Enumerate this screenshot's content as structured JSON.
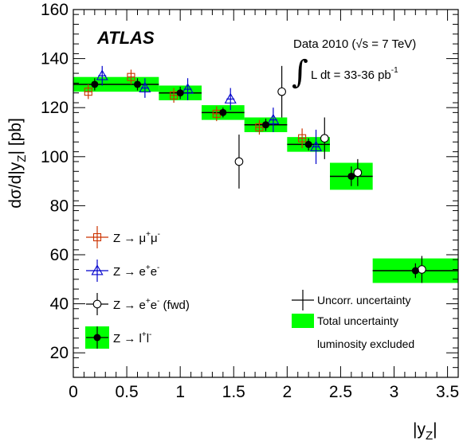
{
  "chart_data": {
    "type": "scatter",
    "title": "",
    "experiment": "ATLAS",
    "annotation": {
      "data_line": "Data 2010 (√s = 7 TeV)",
      "lumi_prefix": "∫",
      "lumi_text": "L dt = 33-36 pb",
      "lumi_sup": "-1"
    },
    "xlabel": "|y",
    "xlabel_sub": "Z",
    "xlabel_end": "|",
    "ylabel": "dσ/d|y",
    "ylabel_sub": "Z",
    "ylabel_end": "| [pb]",
    "xlim": [
      0,
      3.6
    ],
    "ylim": [
      10,
      160
    ],
    "x_ticks": [
      0,
      0.5,
      1,
      1.5,
      2,
      2.5,
      3,
      3.5
    ],
    "x_tick_labels": [
      "0",
      "0.5",
      "1",
      "1.5",
      "2",
      "2.5",
      "3",
      "3.5"
    ],
    "y_ticks": [
      20,
      40,
      60,
      80,
      100,
      120,
      140,
      160
    ],
    "y_tick_labels": [
      "20",
      "40",
      "60",
      "80",
      "100",
      "120",
      "140",
      "160"
    ],
    "series": [
      {
        "name": "Z → l⁺l⁻",
        "marker": "filled-circle",
        "color": "#000000",
        "points": [
          {
            "x": 0.2,
            "y": 129.5,
            "err": 2.5,
            "xlo": 0.0,
            "xhi": 0.8,
            "tot": 3.0
          },
          {
            "x": 0.6,
            "y": 129.5,
            "err": 2.5,
            "xlo": 0.0,
            "xhi": 0.8,
            "tot": 3.0
          },
          {
            "x": 1.0,
            "y": 126.0,
            "err": 2.5,
            "xlo": 0.8,
            "xhi": 1.2,
            "tot": 3.0
          },
          {
            "x": 1.4,
            "y": 118.0,
            "err": 2.0,
            "xlo": 1.2,
            "xhi": 1.6,
            "tot": 3.0
          },
          {
            "x": 1.8,
            "y": 113.0,
            "err": 2.5,
            "xlo": 1.6,
            "xhi": 2.0,
            "tot": 3.0
          },
          {
            "x": 2.2,
            "y": 105.0,
            "err": 2.5,
            "xlo": 2.0,
            "xhi": 2.4,
            "tot": 3.0
          },
          {
            "x": 2.6,
            "y": 92.0,
            "err": 4.0,
            "xlo": 2.4,
            "xhi": 2.8,
            "tot": 5.5
          },
          {
            "x": 3.2,
            "y": 53.5,
            "err": 3.0,
            "xlo": 2.8,
            "xhi": 3.6,
            "tot": 5.0
          }
        ]
      },
      {
        "name": "Z → μ⁺μ⁻",
        "marker": "open-square",
        "color": "#cc3300",
        "points": [
          {
            "x": 0.14,
            "y": 126.5,
            "err": 3.0
          },
          {
            "x": 0.54,
            "y": 132.5,
            "err": 3.0
          },
          {
            "x": 0.94,
            "y": 125.0,
            "err": 3.0
          },
          {
            "x": 1.34,
            "y": 117.5,
            "err": 3.0
          },
          {
            "x": 1.74,
            "y": 112.0,
            "err": 3.0
          },
          {
            "x": 2.14,
            "y": 107.5,
            "err": 4.0
          }
        ]
      },
      {
        "name": "Z → e⁺e⁻",
        "marker": "open-triangle",
        "color": "#0000cc",
        "points": [
          {
            "x": 0.27,
            "y": 133.0,
            "err": 4.0
          },
          {
            "x": 0.67,
            "y": 128.0,
            "err": 4.0
          },
          {
            "x": 1.07,
            "y": 127.5,
            "err": 4.5
          },
          {
            "x": 1.47,
            "y": 123.5,
            "err": 4.5
          },
          {
            "x": 1.87,
            "y": 115.0,
            "err": 5.0
          },
          {
            "x": 2.27,
            "y": 104.0,
            "err": 7.0
          }
        ]
      },
      {
        "name": "Z → e⁺e⁻ (fwd)",
        "marker": "open-circle",
        "color": "#000000",
        "points": [
          {
            "x": 1.55,
            "y": 98.0,
            "err": 11.0
          },
          {
            "x": 1.95,
            "y": 126.5,
            "err": 10.5
          },
          {
            "x": 2.35,
            "y": 107.5,
            "err": 8.5
          },
          {
            "x": 2.66,
            "y": 93.5,
            "err": 5.5
          },
          {
            "x": 3.26,
            "y": 54.0,
            "err": 5.5
          }
        ]
      }
    ],
    "legend_left": [
      {
        "label": "Z → μ",
        "sup1": "+",
        "mid": "μ",
        "sup2": "-",
        "marker": "open-square",
        "color": "#cc3300"
      },
      {
        "label": "Z → e",
        "sup1": "+",
        "mid": "e",
        "sup2": "-",
        "marker": "open-triangle",
        "color": "#0000cc"
      },
      {
        "label": "Z → e",
        "sup1": "+",
        "mid": "e",
        "sup2": "-",
        "suffix": " (fwd)",
        "marker": "open-circle",
        "color": "#000000"
      },
      {
        "label": "Z → l",
        "sup1": "+",
        "mid": "l",
        "sup2": "-",
        "marker": "filled-circle-box",
        "color": "#000000"
      }
    ],
    "legend_right": [
      {
        "label": "Uncorr. uncertainty"
      },
      {
        "label": "Total uncertainty"
      },
      {
        "label": "luminosity excluded"
      }
    ],
    "colors": {
      "band": "#00ff00",
      "box_color": "#00ff00"
    },
    "grid": false,
    "legend_placement": "bottom-left and bottom-right"
  }
}
